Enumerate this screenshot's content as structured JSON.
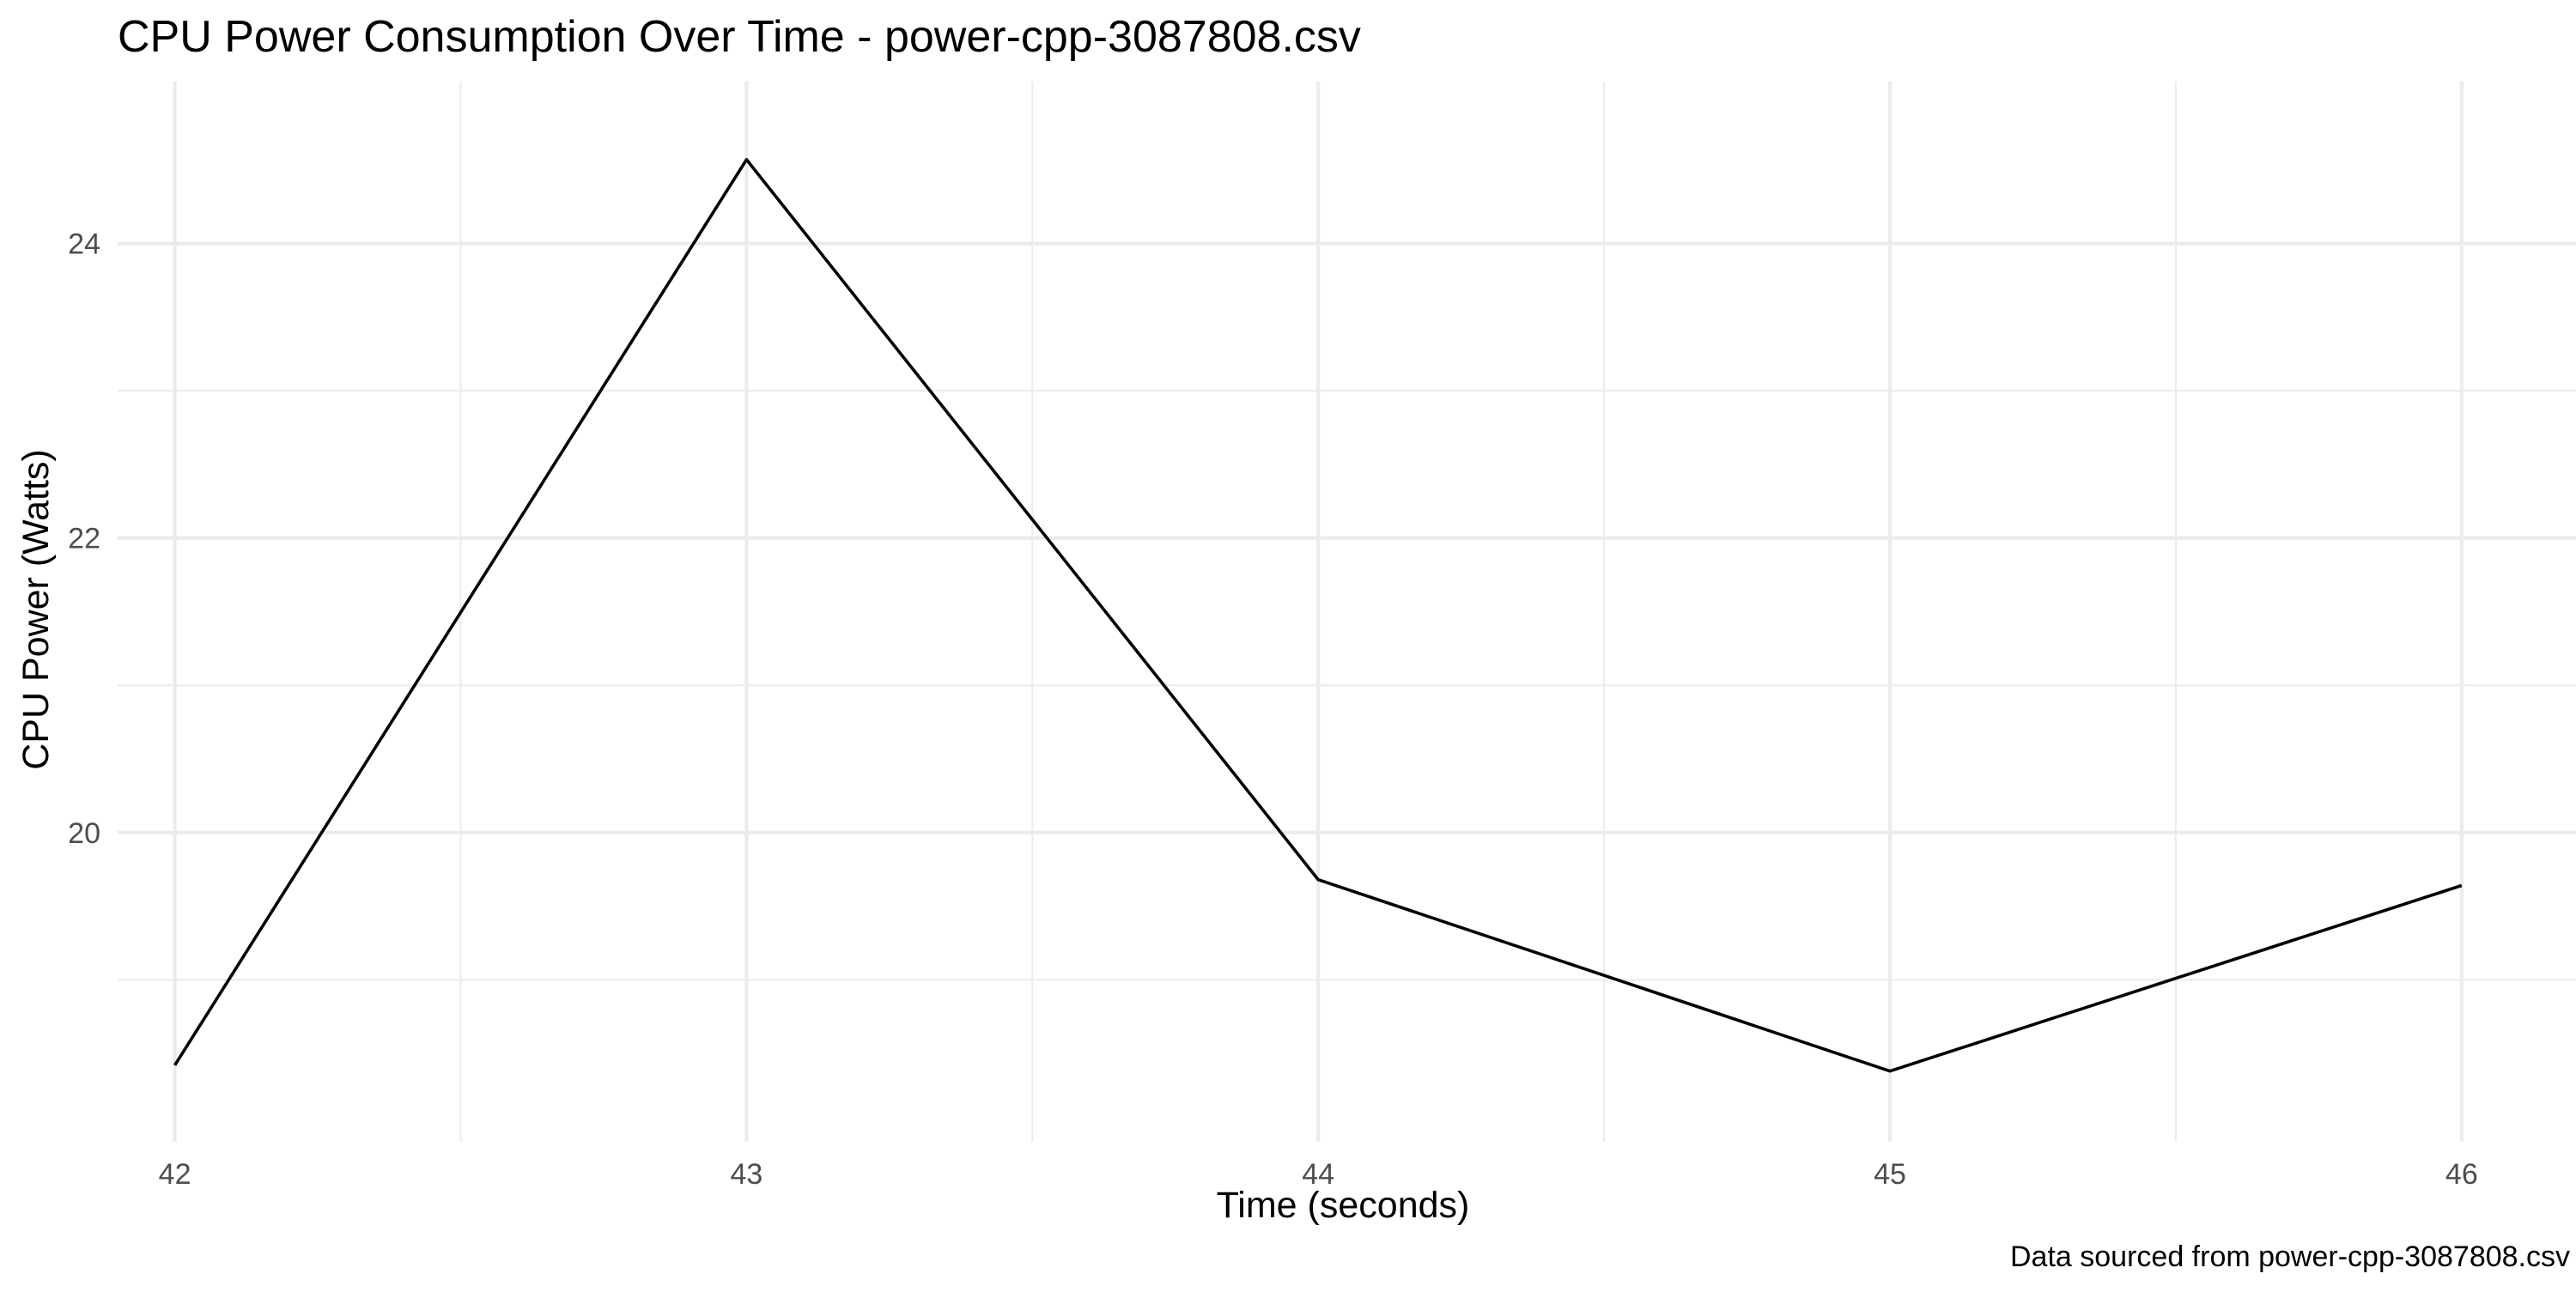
{
  "chart_data": {
    "type": "line",
    "title": "CPU Power Consumption Over Time - power-cpp-3087808.csv",
    "xlabel": "Time (seconds)",
    "ylabel": "CPU Power (Watts)",
    "caption": "Data sourced from power-cpp-3087808.csv",
    "x": [
      42,
      43,
      44,
      45,
      46
    ],
    "y": [
      18.42,
      24.57,
      19.68,
      18.38,
      19.64
    ],
    "xlim": [
      41.9,
      46.2
    ],
    "ylim": [
      17.9,
      25.1
    ],
    "x_ticks": [
      42,
      43,
      44,
      45,
      46
    ],
    "x_tick_labels": [
      "42",
      "43",
      "44",
      "45",
      "46"
    ],
    "x_minor_ticks": [
      42.5,
      43.5,
      44.5,
      45.5
    ],
    "y_ticks": [
      20,
      22,
      24
    ],
    "y_tick_labels": [
      "20",
      "22",
      "24"
    ],
    "y_minor_ticks": [
      19,
      21,
      23
    ],
    "grid": true,
    "legend": "none",
    "line_color": "#000000",
    "grid_color": "#ebebeb",
    "background_color": "#ffffff"
  }
}
